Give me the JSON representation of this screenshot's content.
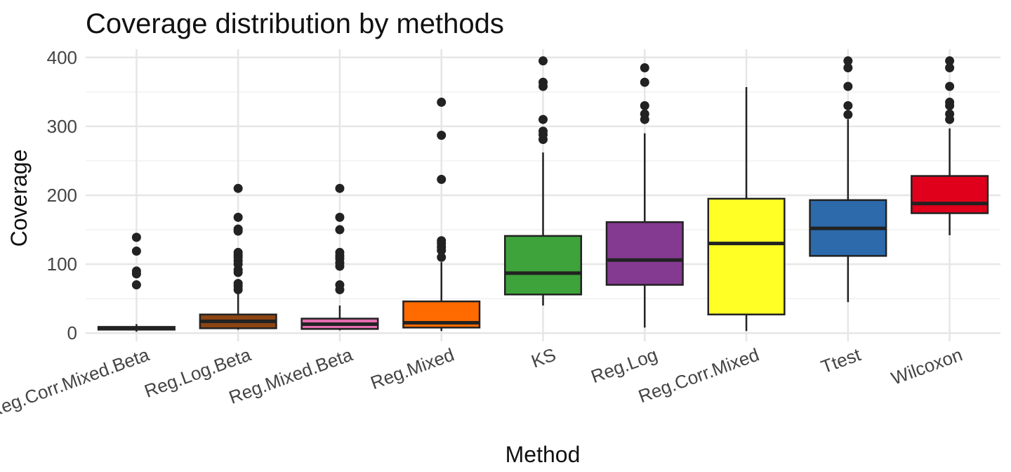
{
  "chart_data": {
    "type": "box",
    "title": "Coverage distribution by methods",
    "xlabel": "Method",
    "ylabel": "Coverage",
    "ylim": [
      -12,
      412
    ],
    "yticks": [
      0,
      100,
      200,
      300,
      400
    ],
    "grid": true,
    "legend": "none",
    "categories": [
      "Reg.Corr.Mixed.Beta",
      "Reg.Log.Beta",
      "Reg.Mixed.Beta",
      "Reg.Mixed",
      "KS",
      "Reg.Log",
      "Reg.Corr.Mixed",
      "Ttest",
      "Wilcoxon"
    ],
    "boxes": [
      {
        "name": "Reg.Corr.Mixed.Beta",
        "fill": "#444444",
        "min": 2,
        "q1": 5,
        "median": 7,
        "q3": 9,
        "max": 13,
        "outliers": [
          70,
          86,
          90,
          119,
          139
        ]
      },
      {
        "name": "Reg.Log.Beta",
        "fill": "#8B4513",
        "min": 5,
        "q1": 7,
        "median": 17,
        "q3": 27,
        "max": 58,
        "outliers": [
          63,
          68,
          72,
          88,
          92,
          100,
          105,
          110,
          113,
          117,
          148,
          151,
          168,
          210
        ]
      },
      {
        "name": "Reg.Mixed.Beta",
        "fill": "#E36BAE",
        "min": 4,
        "q1": 6,
        "median": 13,
        "q3": 21,
        "max": 40,
        "outliers": [
          63,
          70,
          97,
          102,
          108,
          112,
          117,
          150,
          168,
          210
        ]
      },
      {
        "name": "Reg.Mixed",
        "fill": "#FF6A00",
        "min": 3,
        "q1": 8,
        "median": 15,
        "q3": 46,
        "max": 103,
        "outliers": [
          110,
          120,
          125,
          130,
          134,
          223,
          287,
          335
        ]
      },
      {
        "name": "KS",
        "fill": "#3EA33A",
        "min": 40,
        "q1": 56,
        "median": 87,
        "q3": 141,
        "max": 262,
        "outliers": [
          281,
          288,
          293,
          310,
          358,
          364,
          395
        ]
      },
      {
        "name": "Reg.Log",
        "fill": "#833A90",
        "min": 8,
        "q1": 70,
        "median": 106,
        "q3": 161,
        "max": 290,
        "outliers": [
          310,
          318,
          330,
          364,
          385
        ]
      },
      {
        "name": "Reg.Corr.Mixed",
        "fill": "#FFFF26",
        "min": 3,
        "q1": 27,
        "median": 130,
        "q3": 195,
        "max": 357,
        "outliers": []
      },
      {
        "name": "Ttest",
        "fill": "#2C6AAB",
        "min": 45,
        "q1": 112,
        "median": 152,
        "q3": 193,
        "max": 310,
        "outliers": [
          317,
          330,
          358,
          385,
          395
        ]
      },
      {
        "name": "Wilcoxon",
        "fill": "#E0001B",
        "min": 142,
        "q1": 174,
        "median": 188,
        "q3": 228,
        "max": 297,
        "outliers": [
          310,
          318,
          330,
          335,
          358,
          385,
          395
        ]
      }
    ]
  }
}
